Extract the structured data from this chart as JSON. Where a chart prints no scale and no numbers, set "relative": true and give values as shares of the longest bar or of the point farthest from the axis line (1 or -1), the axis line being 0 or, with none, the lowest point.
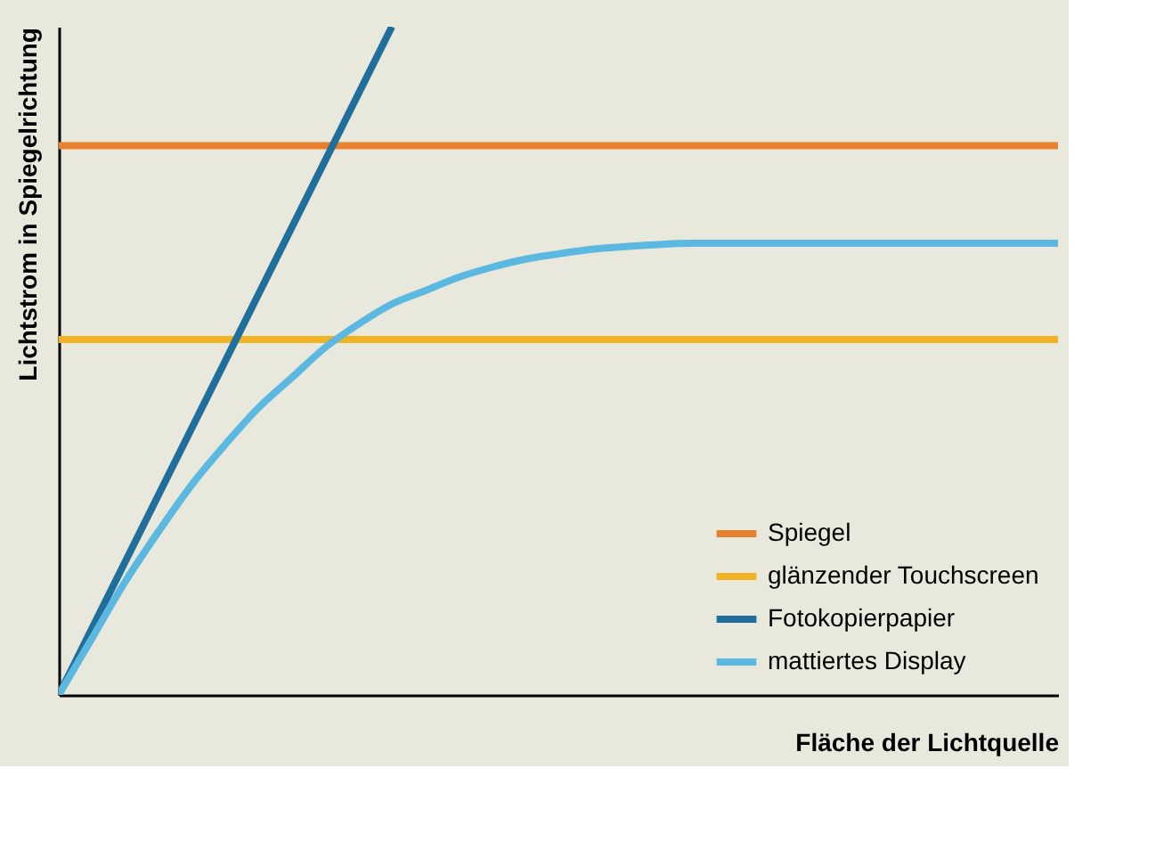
{
  "chart_data": {
    "type": "line",
    "relative": true,
    "xlabel": "Fläche der Lichtquelle",
    "ylabel": "Lichtstrom in Spiegelrichtung",
    "legend": "bottom right",
    "tick_labels": false,
    "marker": "none",
    "line_style": "solid",
    "categories": [
      null,
      null,
      null,
      null,
      null,
      null,
      null,
      null,
      null,
      null,
      null,
      null,
      null,
      null,
      null,
      null,
      null,
      null,
      null,
      null,
      null,
      null,
      null,
      null,
      null,
      null,
      null,
      null,
      null,
      null,
      null
    ],
    "series": [
      {
        "name": "Spiegel",
        "color": "#e8812f",
        "values": [
          0.822,
          0.822,
          0.822,
          0.822,
          0.822,
          0.822,
          0.822,
          0.822,
          0.822,
          0.822,
          0.822,
          0.822,
          0.822,
          0.822,
          0.822,
          0.822,
          0.822,
          0.822,
          0.822,
          0.822,
          0.822,
          0.822,
          0.822,
          0.822,
          0.822,
          0.822,
          0.822,
          0.822,
          0.822,
          0.822,
          0.822
        ]
      },
      {
        "name": "glänzender Touchscreen",
        "color": "#f0b323",
        "values": [
          0.532,
          0.532,
          0.532,
          0.532,
          0.532,
          0.532,
          0.532,
          0.532,
          0.532,
          0.532,
          0.532,
          0.532,
          0.532,
          0.532,
          0.532,
          0.532,
          0.532,
          0.532,
          0.532,
          0.532,
          0.532,
          0.532,
          0.532,
          0.532,
          0.532,
          0.532,
          0.532,
          0.532,
          0.532,
          0.532,
          0.532
        ]
      },
      {
        "name": "Fotokopierpapier",
        "color": "#1f6e9c",
        "values": [
          0,
          0.1,
          0.2,
          0.3,
          0.4,
          0.5,
          0.6,
          0.7,
          0.8,
          0.9,
          1,
          null,
          null,
          null,
          null,
          null,
          null,
          null,
          null,
          null,
          null,
          null,
          null,
          null,
          null,
          null,
          null,
          null,
          null,
          null,
          null
        ]
      },
      {
        "name": "mattiertes Display",
        "color": "#5bb8e0",
        "values": [
          0,
          0.085,
          0.17,
          0.245,
          0.315,
          0.375,
          0.43,
          0.475,
          0.52,
          0.555,
          0.585,
          0.605,
          0.625,
          0.64,
          0.652,
          0.66,
          0.667,
          0.671,
          0.674,
          0.676,
          0.676,
          0.676,
          0.676,
          0.676,
          0.676,
          0.676,
          0.676,
          0.676,
          0.676,
          0.676,
          0.676
        ]
      }
    ]
  }
}
